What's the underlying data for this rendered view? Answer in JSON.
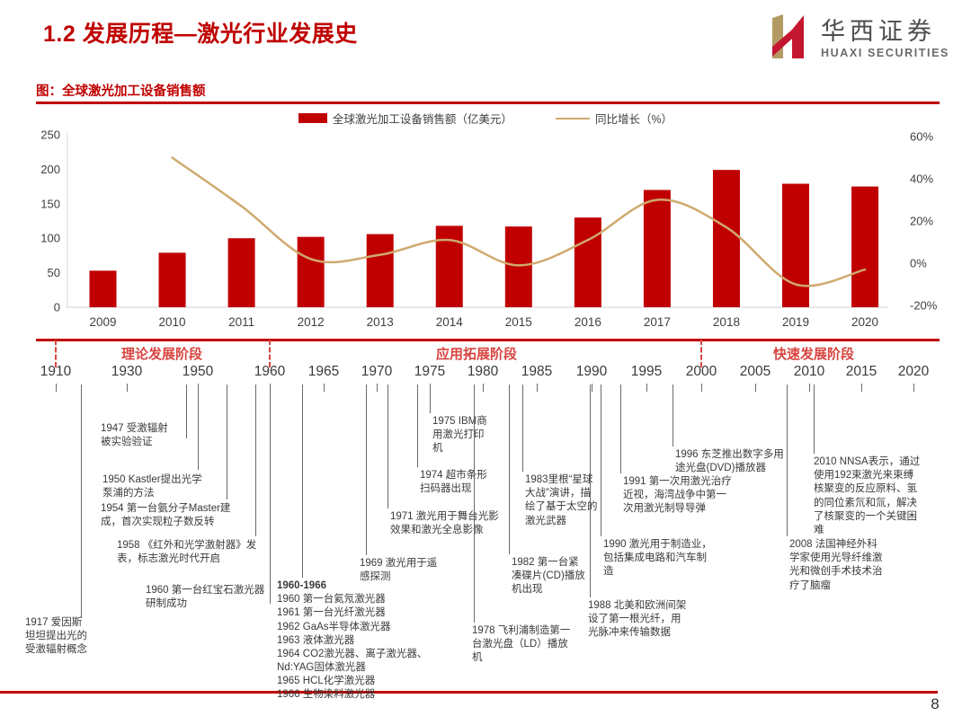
{
  "page": {
    "title": "1.2 发展历程—激光行业发展史",
    "page_number": "8"
  },
  "logo": {
    "cn": "华西证券",
    "en": "HUAXI SECURITIES",
    "red": "#c5162f",
    "gold": "#b39a63"
  },
  "figure_label": "图：全球激光加工设备销售额",
  "chart_data": {
    "type": "bar+line",
    "categories": [
      "2009",
      "2010",
      "2011",
      "2012",
      "2013",
      "2014",
      "2015",
      "2016",
      "2017",
      "2018",
      "2019",
      "2020"
    ],
    "series": [
      {
        "name": "全球激光加工设备销售额（亿美元）",
        "type": "bar",
        "axis": "left",
        "color": "#c00000",
        "values": [
          53,
          79,
          100,
          102,
          106,
          118,
          117,
          130,
          170,
          199,
          179,
          175
        ]
      },
      {
        "name": "同比增长（%）",
        "type": "line",
        "axis": "right",
        "color": "#cfa96e",
        "values": [
          null,
          50,
          27,
          2,
          4,
          11,
          -1,
          11,
          30,
          17,
          -10,
          -3
        ]
      }
    ],
    "left_axis": {
      "ticks": [
        0,
        50,
        100,
        150,
        200,
        250
      ],
      "range": [
        0,
        250
      ]
    },
    "right_axis": {
      "ticks": [
        -20,
        0,
        20,
        40,
        60
      ],
      "tick_labels": [
        "-20%",
        "0%",
        "20%",
        "40%",
        "60%"
      ],
      "range": [
        -20,
        60
      ]
    },
    "grid": false,
    "legend_position": "top-center"
  },
  "timeline": {
    "phases": [
      {
        "label": "理论发展阶段"
      },
      {
        "label": "应用拓展阶段"
      },
      {
        "label": "快速发展阶段"
      }
    ],
    "years": [
      "1910",
      "1930",
      "1950",
      "1960",
      "1965",
      "1970",
      "1975",
      "1980",
      "1985",
      "1990",
      "1995",
      "2000",
      "2005",
      "2010",
      "2015",
      "2020"
    ],
    "events": [
      {
        "text": "1917 爱因斯坦坦提出光的受激辐射概念"
      },
      {
        "text": "1947 受激辐射被实验验证"
      },
      {
        "text": "1950 Kastler提出光学泵浦的方法"
      },
      {
        "text": "1954 第一台氨分子Master建成，首次实现粒子数反转"
      },
      {
        "text": "1958 《红外和光学激射器》发表，标志激光时代开启"
      },
      {
        "text": "1960 第一台红宝石激光器研制成功"
      },
      {
        "lines": [
          "1960-1966",
          "1960 第一台氦氖激光器",
          "1961 第一台光纤激光器",
          "1962 GaAs半导体激光器",
          "1963 液体激光器",
          "1964 CO2激光器、离子激光器、",
          "Nd:YAG固体激光器",
          "1965 HCL化学激光器",
          "1966 生物染料激光器"
        ]
      },
      {
        "text": "1969 激光用于遥感探测"
      },
      {
        "text": "1971 激光用于舞台光影效果和激光全息影像"
      },
      {
        "text": "1974 超市条形扫码器出现"
      },
      {
        "text": "1975 IBM商用激光打印机"
      },
      {
        "text": "1978 飞利浦制造第一台激光盘（LD）播放机"
      },
      {
        "text": "1982 第一台紧凑碟片(CD)播放机出现"
      },
      {
        "text": "1983里根“星球大战”演讲，描绘了基于太空的激光武器"
      },
      {
        "text": "1988 北美和欧洲间架设了第一根光纤，用光脉冲来传输数据"
      },
      {
        "text": "1990 激光用于制造业，包括集成电路和汽车制造"
      },
      {
        "text": "1991 第一次用激光治疗近视，海湾战争中第一次用激光制导导弹"
      },
      {
        "text": "1996 东芝推出数字多用途光盘(DVD)播放器"
      },
      {
        "text": "2008 法国神经外科学家使用光导纤维激光和微创手术技术治疗了脑瘤"
      },
      {
        "text": "2010 NNSA表示，通过使用192束激光来束缚核聚变的反应原料、氢的同位素氘和氚，解决了核聚变的一个关键困难"
      }
    ]
  }
}
